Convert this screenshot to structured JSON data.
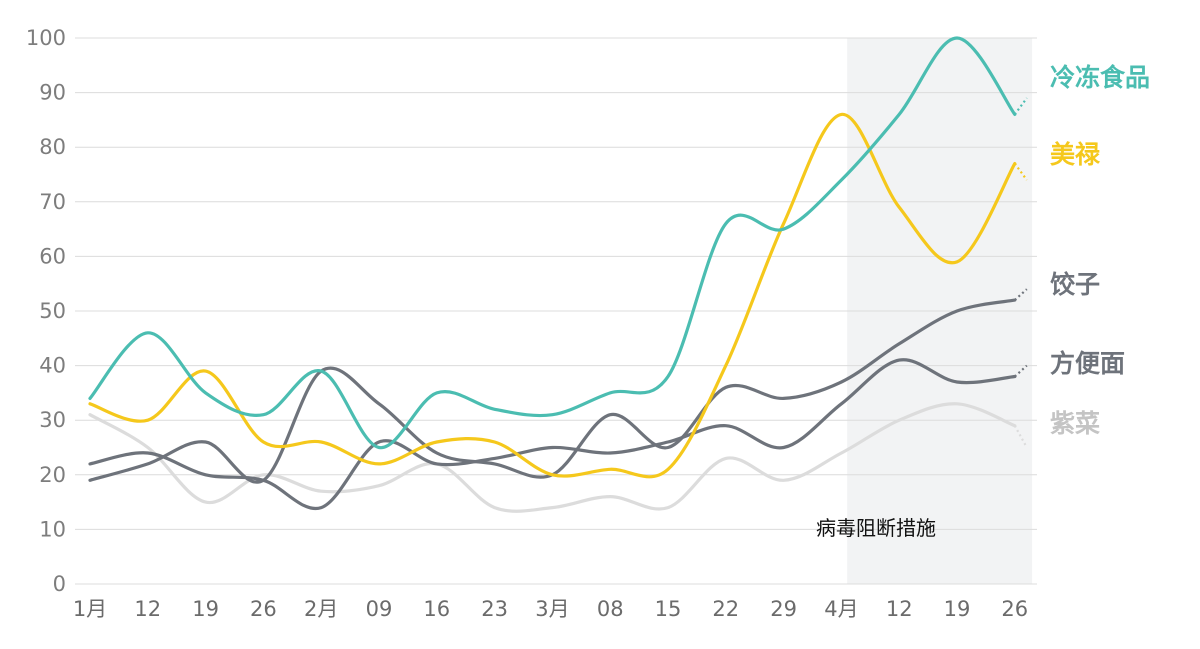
{
  "chart_data": {
    "type": "line",
    "title": "",
    "xlabel": "",
    "ylabel": "",
    "ylim": [
      0,
      100
    ],
    "yticks": [
      0,
      10,
      20,
      30,
      40,
      50,
      60,
      70,
      80,
      90,
      100
    ],
    "x_tick_labels": [
      "1月",
      "12",
      "19",
      "26",
      "2月",
      "09",
      "16",
      "23",
      "3月",
      "08",
      "15",
      "22",
      "29",
      "4月",
      "12",
      "19",
      "26"
    ],
    "grid": true,
    "legend": "right, labels at line ends",
    "shaded_region": {
      "from_index": 13.1,
      "to_index": 16.3,
      "color": "#f2f3f4",
      "label": "病毒阻断措施"
    },
    "series": [
      {
        "name": "冷冻食品",
        "color": "#4bbdb1",
        "values": [
          34,
          46,
          35,
          31,
          39,
          25,
          35,
          32,
          31,
          35,
          38,
          66,
          65,
          74,
          86,
          100,
          86
        ],
        "end_value": 89
      },
      {
        "name": "美禄",
        "color": "#f5c81c",
        "values": [
          33,
          30,
          39,
          26,
          26,
          22,
          26,
          26,
          20,
          21,
          21,
          40,
          66,
          86,
          69,
          59,
          77
        ],
        "end_value": 74
      },
      {
        "name": "饺子",
        "color": "#6e737b",
        "values": [
          19,
          22,
          26,
          19,
          39,
          33,
          24,
          22,
          20,
          31,
          25,
          36,
          34,
          37,
          44,
          50,
          52
        ],
        "end_value": 54
      },
      {
        "name": "方便面",
        "color": "#6e737b",
        "values": [
          22,
          24,
          20,
          19,
          14,
          26,
          22,
          23,
          25,
          24,
          26,
          29,
          25,
          33,
          41,
          37,
          38
        ],
        "end_value": 40
      },
      {
        "name": "紫菜",
        "color": "#dcdcdc",
        "values": [
          31,
          25,
          15,
          20,
          17,
          18,
          22,
          14,
          14,
          16,
          14,
          23,
          19,
          24,
          30,
          33,
          29
        ],
        "end_value": 25
      }
    ]
  }
}
